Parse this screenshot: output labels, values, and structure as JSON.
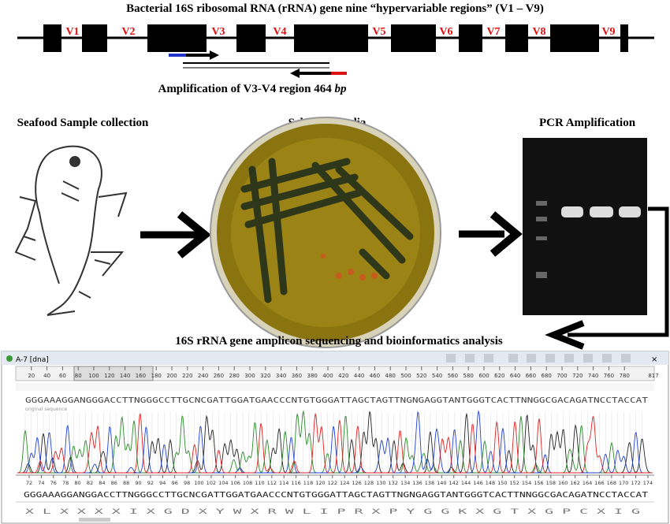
{
  "header": {
    "title": "Bacterial 16S ribosomal RNA (rRNA) gene nine “hypervariable regions” (V1 – V9)"
  },
  "gene": {
    "regions": [
      "V1",
      "V2",
      "V3",
      "V4",
      "V5",
      "V6",
      "V7",
      "V8",
      "V9"
    ]
  },
  "amplification": {
    "label": "Amplification of V3-V4 region 464",
    "unit": "bp"
  },
  "steps": [
    "Seafood Sample collection",
    "Selective media",
    "PCR Amplification"
  ],
  "sequencing": {
    "label": "16S rRNA gene amplicon sequencing and bioinformatics analysis"
  },
  "chromatogram": {
    "window_title": "A-7 [dna]",
    "ruler": [
      20,
      40,
      60,
      80,
      100,
      120,
      140,
      160,
      180,
      200,
      220,
      240,
      260,
      280,
      300,
      320,
      340,
      360,
      380,
      400,
      420,
      440,
      460,
      480,
      500,
      520,
      540,
      560,
      580,
      600,
      620,
      640,
      660,
      680,
      700,
      720,
      740,
      760,
      780
    ],
    "ruler_end": 817,
    "sequence": "GGGAAAGGANGGGACCTTNGGGCCTTGCNCGATTGGATGAACCCNTGTGGGATTAGCTAGTTNGNGAGGTANTGGGTCACTTNNGGCGACAGATNCCTACCAT",
    "sequence_note": "original sequence",
    "position_ruler": [
      72,
      74,
      76,
      78,
      80,
      82,
      84,
      86,
      88,
      90,
      92,
      94,
      96,
      98,
      100,
      102,
      104,
      106,
      108,
      110,
      112,
      114,
      116,
      118,
      120,
      122,
      124,
      126,
      128,
      130,
      132,
      134,
      136,
      138,
      140,
      142,
      144,
      146,
      148,
      150,
      152,
      154,
      156,
      158,
      160,
      162,
      164,
      166,
      168,
      170,
      172,
      174
    ],
    "basecalls": "GGGAAAGGANGGACCTTNGGGCCTTGCNCGATTGGATGAACCCNTGTGGGATTAGCTAGTTNGNGAGGTANTGGGTCACTTNNGGCGACAGATNCCTACCAT",
    "amino_acids": "X L X X X X I X G D X Y W X R W L I P R X P Y G G K X G T X G P C X I G"
  }
}
